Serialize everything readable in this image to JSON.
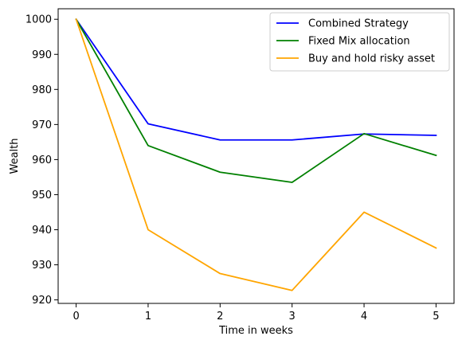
{
  "chart_data": {
    "type": "line",
    "x": [
      0,
      1,
      2,
      3,
      4,
      5
    ],
    "series": [
      {
        "name": "Combined Strategy",
        "color": "#0000ff",
        "values": [
          1000,
          970.2,
          965.6,
          965.6,
          967.3,
          966.9
        ]
      },
      {
        "name": "Fixed Mix allocation",
        "color": "#008000",
        "values": [
          1000,
          964.0,
          956.4,
          953.5,
          967.4,
          961.2
        ]
      },
      {
        "name": "Buy and hold risky asset",
        "color": "#ffa500",
        "values": [
          1000,
          940.0,
          927.5,
          922.7,
          945.0,
          934.8
        ]
      }
    ],
    "xlabel": "Time in weeks",
    "ylabel": "Wealth",
    "xlim": [
      -0.25,
      5.25
    ],
    "ylim": [
      919,
      1003
    ],
    "xticks": [
      0,
      1,
      2,
      3,
      4,
      5
    ],
    "yticks": [
      920,
      930,
      940,
      950,
      960,
      970,
      980,
      990,
      1000
    ],
    "grid": false,
    "legend": "top-right"
  }
}
